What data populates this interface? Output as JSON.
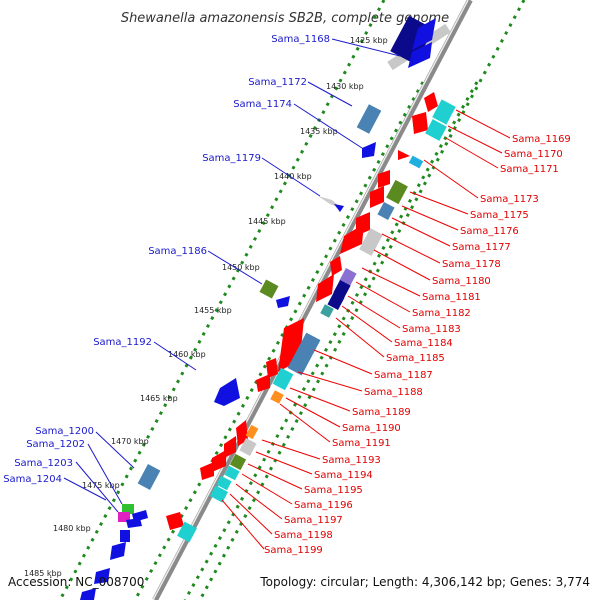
{
  "title": "Shewanella amazonensis SB2B, complete genome",
  "footer": {
    "accession": "Accession: NC_008700",
    "summary": "Topology: circular; Length: 4,306,142 bp; Genes: 3,774"
  },
  "kbp_labels": [
    "1425 kbp",
    "1430 kbp",
    "1435 kbp",
    "1440 kbp",
    "1445 kbp",
    "1450 kbp",
    "1455 kbp",
    "1460 kbp",
    "1465 kbp",
    "1470 kbp",
    "1475 kbp",
    "1480 kbp",
    "1485 kbp"
  ],
  "left_genes": [
    "Sama_1168",
    "Sama_1172",
    "Sama_1174",
    "Sama_1179",
    "Sama_1186",
    "Sama_1192",
    "Sama_1200",
    "Sama_1202",
    "Sama_1203",
    "Sama_1204"
  ],
  "right_genes": [
    "Sama_1169",
    "Sama_1170",
    "Sama_1171",
    "Sama_1173",
    "Sama_1175",
    "Sama_1176",
    "Sama_1177",
    "Sama_1178",
    "Sama_1180",
    "Sama_1181",
    "Sama_1182",
    "Sama_1183",
    "Sama_1184",
    "Sama_1185",
    "Sama_1187",
    "Sama_1188",
    "Sama_1189",
    "Sama_1190",
    "Sama_1191",
    "Sama_1193",
    "Sama_1194",
    "Sama_1195",
    "Sama_1196",
    "Sama_1197",
    "Sama_1198",
    "Sama_1199"
  ],
  "colors": {
    "backbone": "#8a8a8a",
    "tick_green": "#1e8a1e",
    "forward_red": "#ff0000",
    "navy": "#0a0a8a",
    "blue": "#1010e0",
    "steel": "#4a82b4",
    "cyan": "#20d0d0",
    "olive": "#5a8a20",
    "grey": "#c8c8c8",
    "purple": "#8a70d0",
    "orange": "#ff9020",
    "magenta": "#e020c0",
    "green": "#30c030",
    "label_blue": "#1a1acc",
    "label_red": "#e00000"
  }
}
